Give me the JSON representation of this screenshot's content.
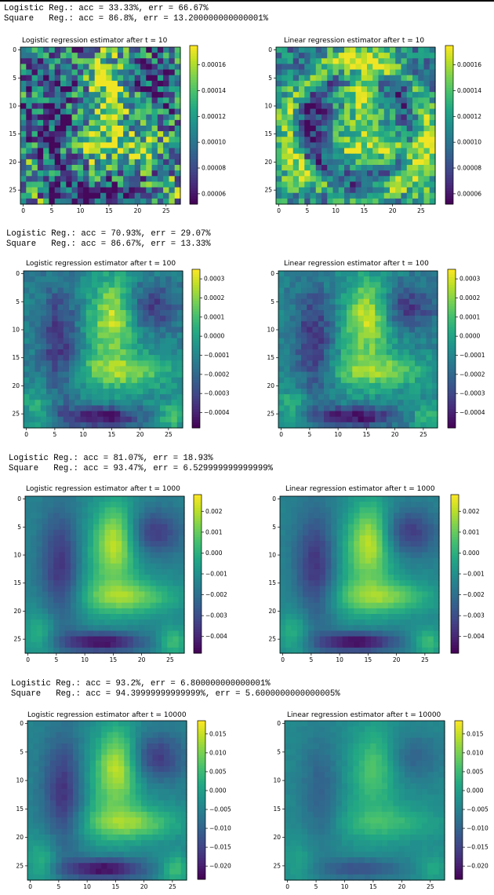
{
  "console": [
    {
      "logistic": "Logistic Reg.: acc = 33.33%, err = 66.67%",
      "square": "Square   Reg.: acc = 86.8%, err = 13.200000000000001%"
    },
    {
      "logistic": "Logistic Reg.: acc = 70.93%, err = 29.07%",
      "square": "Square   Reg.: acc = 86.67%, err = 13.33%"
    },
    {
      "logistic": "Logistic Reg.: acc = 81.07%, err = 18.93%",
      "square": "Square   Reg.: acc = 93.47%, err = 6.529999999999999%"
    },
    {
      "logistic": "Logistic Reg.: acc = 93.2%, err = 6.800000000000001%",
      "square": "Square   Reg.: acc = 94.39999999999999%, err = 5.6000000000000005%"
    }
  ],
  "chart_data": [
    {
      "type": "heatmap",
      "title": "Logistic regression estimator after t = 10",
      "xticks": [
        "0",
        "5",
        "10",
        "15",
        "20",
        "25"
      ],
      "yticks": [
        "0",
        "5",
        "10",
        "15",
        "20",
        "25"
      ],
      "colorbar_ticks": [
        "0.00016",
        "0.00014",
        "0.00012",
        "0.00010",
        "0.00008",
        "0.00006"
      ],
      "colormap": "viridis",
      "grid_size": 28,
      "clim": [
        5.2e-05,
        0.000175
      ]
    },
    {
      "type": "heatmap",
      "title": "Linear regression estimator after t = 10",
      "xticks": [
        "0",
        "5",
        "10",
        "15",
        "20",
        "25"
      ],
      "yticks": [
        "0",
        "5",
        "10",
        "15",
        "20",
        "25"
      ],
      "colorbar_ticks": [
        "0.00016",
        "0.00014",
        "0.00012",
        "0.00010",
        "0.00008",
        "0.00006"
      ],
      "colormap": "viridis",
      "grid_size": 28,
      "clim": [
        5.2e-05,
        0.000175
      ]
    },
    {
      "type": "heatmap",
      "title": "Logistic regression estimator after t = 100",
      "xticks": [
        "0",
        "5",
        "10",
        "15",
        "20",
        "25"
      ],
      "yticks": [
        "0",
        "5",
        "10",
        "15",
        "20",
        "25"
      ],
      "colorbar_ticks": [
        "0.0003",
        "0.0002",
        "0.0001",
        "0.0000",
        "−0.0001",
        "−0.0002",
        "−0.0003",
        "−0.0004"
      ],
      "colormap": "viridis",
      "grid_size": 28,
      "clim": [
        -0.00048,
        0.00035
      ]
    },
    {
      "type": "heatmap",
      "title": "Linear regression estimator after t = 100",
      "xticks": [
        "0",
        "5",
        "10",
        "15",
        "20",
        "25"
      ],
      "yticks": [
        "0",
        "5",
        "10",
        "15",
        "20",
        "25"
      ],
      "colorbar_ticks": [
        "0.0003",
        "0.0002",
        "0.0001",
        "0.0000",
        "−0.0001",
        "−0.0002",
        "−0.0003",
        "−0.0004"
      ],
      "colormap": "viridis",
      "grid_size": 28,
      "clim": [
        -0.00048,
        0.00035
      ]
    },
    {
      "type": "heatmap",
      "title": "Logistic regression estimator after t = 1000",
      "xticks": [
        "0",
        "5",
        "10",
        "15",
        "20",
        "25"
      ],
      "yticks": [
        "0",
        "5",
        "10",
        "15",
        "20",
        "25"
      ],
      "colorbar_ticks": [
        "0.002",
        "0.001",
        "0.000",
        "−0.001",
        "−0.002",
        "−0.003",
        "−0.004"
      ],
      "colormap": "viridis",
      "grid_size": 28,
      "clim": [
        -0.0048,
        0.0028
      ]
    },
    {
      "type": "heatmap",
      "title": "Linear regression estimator after t = 1000",
      "xticks": [
        "0",
        "5",
        "10",
        "15",
        "20",
        "25"
      ],
      "yticks": [
        "0",
        "5",
        "10",
        "15",
        "20",
        "25"
      ],
      "colorbar_ticks": [
        "0.002",
        "0.001",
        "0.000",
        "−0.001",
        "−0.002",
        "−0.003",
        "−0.004"
      ],
      "colormap": "viridis",
      "grid_size": 28,
      "clim": [
        -0.0048,
        0.0028
      ]
    },
    {
      "type": "heatmap",
      "title": "Logistic regression estimator after t = 10000",
      "xticks": [
        "0",
        "5",
        "10",
        "15",
        "20",
        "25"
      ],
      "yticks": [
        "0",
        "5",
        "10",
        "15",
        "20",
        "25"
      ],
      "colorbar_ticks": [
        "0.015",
        "0.010",
        "0.005",
        "0.000",
        "−0.005",
        "−0.010",
        "−0.015",
        "−0.020"
      ],
      "colormap": "viridis",
      "grid_size": 28,
      "clim": [
        -0.0235,
        0.0185
      ]
    },
    {
      "type": "heatmap",
      "title": "Linear regression estimator after t = 10000",
      "xticks": [
        "0",
        "5",
        "10",
        "15",
        "20",
        "25"
      ],
      "yticks": [
        "0",
        "5",
        "10",
        "15",
        "20",
        "25"
      ],
      "colorbar_ticks": [
        "0.015",
        "0.010",
        "0.005",
        "0.000",
        "−0.005",
        "−0.010",
        "−0.015",
        "−0.020"
      ],
      "colormap": "viridis",
      "grid_size": 28,
      "clim": [
        -0.0235,
        0.0185
      ]
    }
  ]
}
